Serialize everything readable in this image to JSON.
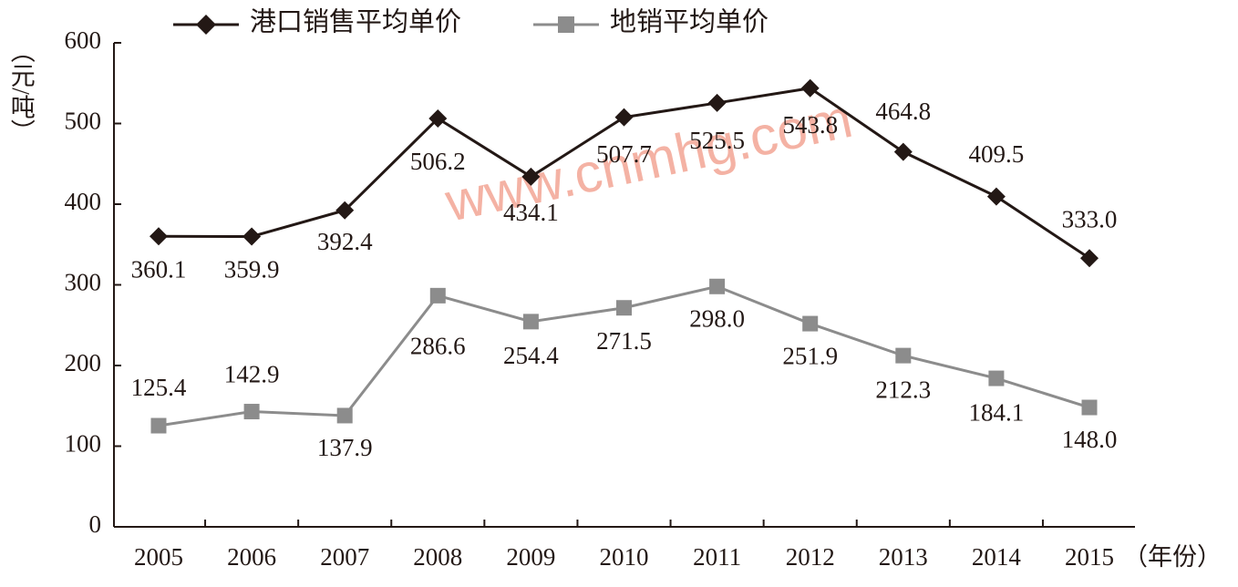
{
  "chart_data": {
    "type": "line",
    "y_label": "（元/吨）",
    "x_label": "（年份）",
    "watermark": "www.cnmhg.com",
    "categories": [
      "2005",
      "2006",
      "2007",
      "2008",
      "2009",
      "2010",
      "2011",
      "2012",
      "2013",
      "2014",
      "2015"
    ],
    "series": [
      {
        "name": "港口销售平均单价",
        "color": "#231815",
        "marker": "diamond",
        "values": [
          360.1,
          359.9,
          392.4,
          506.2,
          434.1,
          507.7,
          525.5,
          543.8,
          464.8,
          409.5,
          333.0
        ],
        "value_labels": [
          "360.1",
          "359.9",
          "392.4",
          "506.2",
          "434.1",
          "507.7",
          "525.5",
          "543.8",
          "464.8",
          "409.5",
          "333.0"
        ]
      },
      {
        "name": "地销平均单价",
        "color": "#8c8c8c",
        "marker": "square",
        "values": [
          125.4,
          142.9,
          137.9,
          286.6,
          254.4,
          271.5,
          298.0,
          251.9,
          212.3,
          184.1,
          148.0
        ],
        "value_labels": [
          "125.4",
          "142.9",
          "137.9",
          "286.6",
          "254.4",
          "271.5",
          "298.0",
          "251.9",
          "212.3",
          "184.1",
          "148.0"
        ]
      }
    ],
    "ylim": [
      0,
      600
    ],
    "yticks": [
      0,
      100,
      200,
      300,
      400,
      500,
      600
    ],
    "grid": false,
    "legend": "top"
  }
}
